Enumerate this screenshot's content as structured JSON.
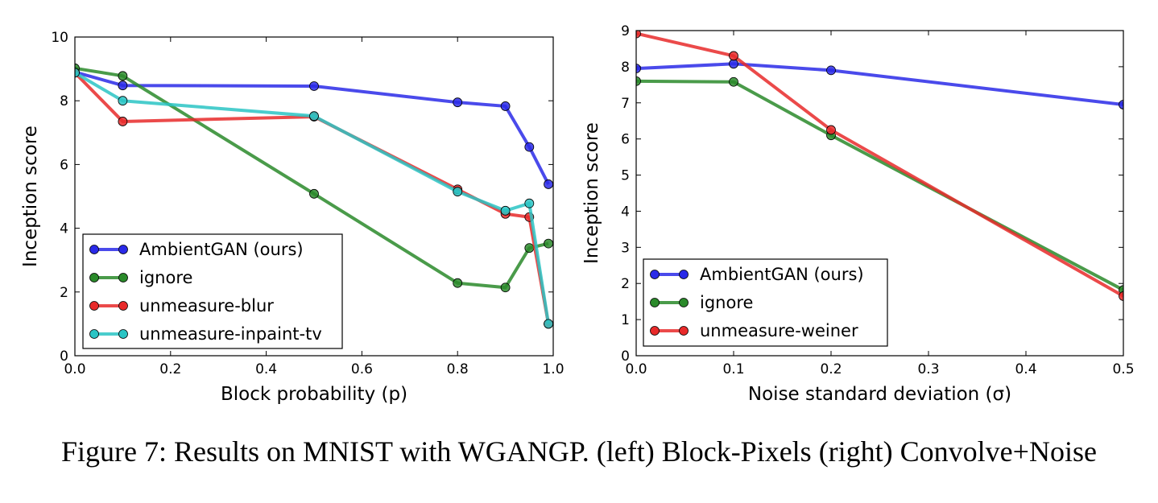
{
  "caption": "Figure 7: Results on MNIST with WGANGP. (left) Block-Pixels (right) Convolve+Noise",
  "colors": {
    "AmbientGAN (ours)": "#2a2ae8",
    "ignore": "#2a8a2a",
    "unmeasure-blur": "#e82a2a",
    "unmeasure-inpaint-tv": "#2ac4c4",
    "unmeasure-weiner": "#e82a2a"
  },
  "chart_data": [
    {
      "type": "line",
      "title": "",
      "xlabel": "Block probability (p)",
      "ylabel": "Inception score",
      "xlim": [
        0,
        1.0
      ],
      "ylim": [
        0,
        10
      ],
      "xticks": [
        0.0,
        0.2,
        0.4,
        0.6,
        0.8,
        1.0
      ],
      "xtick_labels": [
        "0.0",
        "0.2",
        "0.4",
        "0.6",
        "0.8",
        "1.0"
      ],
      "yticks": [
        0,
        2,
        4,
        6,
        8,
        10
      ],
      "ytick_labels": [
        "0",
        "2",
        "4",
        "6",
        "8",
        "10"
      ],
      "legend_position": "lower-left",
      "x": [
        0.0,
        0.1,
        0.5,
        0.8,
        0.9,
        0.95,
        0.99
      ],
      "series": [
        {
          "name": "AmbientGAN (ours)",
          "values": [
            8.9,
            8.48,
            8.46,
            7.95,
            7.83,
            6.55,
            5.38
          ]
        },
        {
          "name": "ignore",
          "values": [
            9.02,
            8.78,
            5.08,
            2.28,
            2.14,
            3.38,
            3.52
          ]
        },
        {
          "name": "unmeasure-blur",
          "values": [
            8.88,
            7.35,
            7.5,
            5.22,
            4.45,
            4.35,
            1.0
          ]
        },
        {
          "name": "unmeasure-inpaint-tv",
          "values": [
            8.88,
            8.0,
            7.52,
            5.15,
            4.55,
            4.78,
            1.0
          ]
        }
      ]
    },
    {
      "type": "line",
      "title": "",
      "xlabel": "Noise standard deviation (σ)",
      "ylabel": "Inception score",
      "xlim": [
        0,
        0.5
      ],
      "ylim": [
        0,
        9
      ],
      "xticks": [
        0.0,
        0.1,
        0.2,
        0.3,
        0.4,
        0.5
      ],
      "xtick_labels": [
        "0.0",
        "0.1",
        "0.2",
        "0.3",
        "0.4",
        "0.5"
      ],
      "yticks": [
        0,
        1,
        2,
        3,
        4,
        5,
        6,
        7,
        8,
        9
      ],
      "ytick_labels": [
        "0",
        "1",
        "2",
        "3",
        "4",
        "5",
        "6",
        "7",
        "8",
        "9"
      ],
      "legend_position": "lower-left",
      "x": [
        0.0,
        0.1,
        0.2,
        0.5
      ],
      "series": [
        {
          "name": "AmbientGAN (ours)",
          "values": [
            7.95,
            8.08,
            7.9,
            6.95
          ]
        },
        {
          "name": "ignore",
          "values": [
            7.6,
            7.58,
            6.1,
            1.82
          ]
        },
        {
          "name": "unmeasure-weiner",
          "values": [
            8.92,
            8.3,
            6.25,
            1.65
          ]
        }
      ]
    }
  ]
}
